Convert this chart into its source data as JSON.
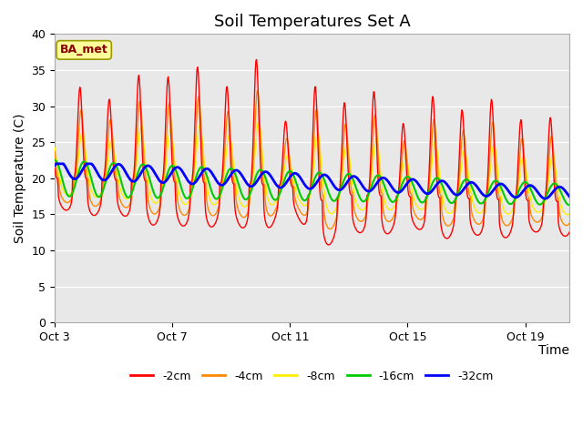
{
  "title": "Soil Temperatures Set A",
  "xlabel": "Time",
  "ylabel": "Soil Temperature (C)",
  "ylim": [
    0,
    40
  ],
  "yticks": [
    0,
    5,
    10,
    15,
    20,
    25,
    30,
    35,
    40
  ],
  "x_tick_labels": [
    "Oct 3",
    "Oct 7",
    "Oct 11",
    "Oct 15",
    "Oct 19"
  ],
  "x_tick_pos": [
    0,
    4,
    8,
    12,
    16
  ],
  "xlim": [
    0,
    17.5
  ],
  "legend_labels": [
    "-2cm",
    "-4cm",
    "-8cm",
    "-16cm",
    "-32cm"
  ],
  "legend_colors": [
    "#ff0000",
    "#ff8800",
    "#ffee00",
    "#00cc00",
    "#0000ff"
  ],
  "annotation_text": "BA_met",
  "annotation_bg": "#ffff99",
  "annotation_border": "#999900",
  "annotation_text_color": "#880000",
  "bg_color": "#e8e8e8",
  "title_fontsize": 13,
  "axis_label_fontsize": 10,
  "tick_fontsize": 9
}
